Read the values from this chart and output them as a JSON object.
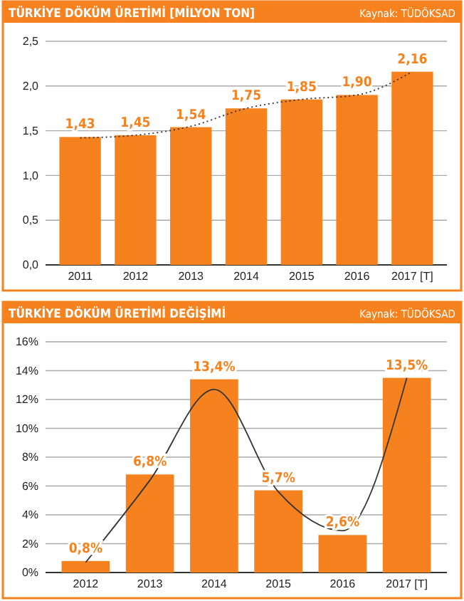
{
  "chart_data": [
    {
      "type": "bar",
      "title": "TÜRKİYE DÖKÜM ÜRETİMİ [MİLYON TON]",
      "annotations": [
        "Kaynak: TÜDÖKSAD"
      ],
      "categories": [
        "2011",
        "2012",
        "2013",
        "2014",
        "2015",
        "2016",
        "2017 [T]"
      ],
      "series": [
        {
          "color": "#f5821f",
          "values": [
            1.43,
            1.45,
            1.54,
            1.75,
            1.85,
            1.9,
            2.16
          ],
          "value_labels": [
            "1,43",
            "1,45",
            "1,54",
            "1,75",
            "1,85",
            "1,90",
            "2,16"
          ]
        },
        {
          "type": "line",
          "color": "#333333",
          "line_style": "dotted",
          "values": [
            1.42,
            1.45,
            1.55,
            1.75,
            1.85,
            1.9,
            2.16
          ]
        }
      ],
      "ylim": [
        0,
        2.5
      ],
      "yticks": [
        {
          "value": 0,
          "label": "0,0"
        },
        {
          "value": 0.5,
          "label": "0,5"
        },
        {
          "value": 1,
          "label": "1,0"
        },
        {
          "value": 1.5,
          "label": "1,5"
        },
        {
          "value": 2,
          "label": "2,0"
        },
        {
          "value": 2.5,
          "label": "2,5"
        }
      ],
      "grid": "y"
    },
    {
      "type": "bar",
      "title": "TÜRKİYE DÖKÜM ÜRETİMİ DEĞİŞİMİ",
      "annotations": [
        "Kaynak: TÜDÖKSAD"
      ],
      "categories": [
        "2012",
        "2013",
        "2014",
        "2015",
        "2016",
        "2017 [T]"
      ],
      "series": [
        {
          "color": "#f5821f",
          "values": [
            0.8,
            6.8,
            13.4,
            5.7,
            2.6,
            13.5
          ],
          "value_labels": [
            "0,8%",
            "6,8%",
            "13,4%",
            "5,7%",
            "2,6%",
            "13,5%"
          ]
        },
        {
          "type": "line",
          "color": "#333333",
          "line_style": "solid",
          "values": [
            0.7,
            6.4,
            12.7,
            5.6,
            2.9,
            13.5
          ]
        }
      ],
      "ylim": [
        0,
        16
      ],
      "yticks": [
        {
          "value": 0,
          "label": "0%"
        },
        {
          "value": 2,
          "label": "2%"
        },
        {
          "value": 4,
          "label": "4%"
        },
        {
          "value": 6,
          "label": "6%"
        },
        {
          "value": 8,
          "label": "8%"
        },
        {
          "value": 10,
          "label": "10%"
        },
        {
          "value": 12,
          "label": "12%"
        },
        {
          "value": 14,
          "label": "14%"
        },
        {
          "value": 16,
          "label": "16%"
        }
      ],
      "grid": "y"
    }
  ]
}
